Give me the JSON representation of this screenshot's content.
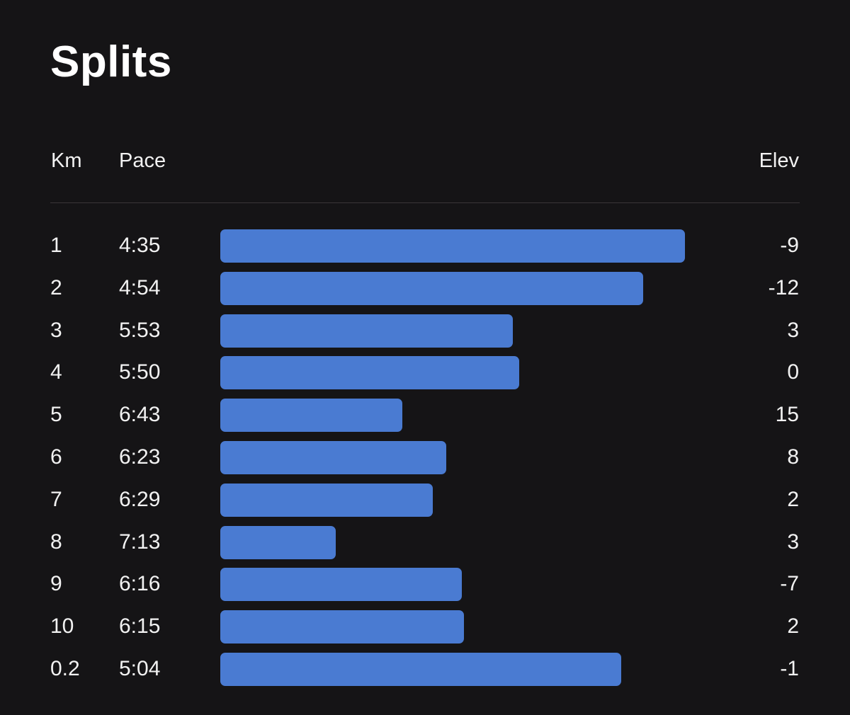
{
  "title": "Splits",
  "headers": {
    "km": "Km",
    "pace": "Pace",
    "elev": "Elev"
  },
  "colors": {
    "background": "#151416",
    "bar": "#4a7bd2",
    "text": "#ffffff",
    "divider": "#3a3538"
  },
  "splits": [
    {
      "km": "1",
      "pace": "4:35",
      "elev": "-9"
    },
    {
      "km": "2",
      "pace": "4:54",
      "elev": "-12"
    },
    {
      "km": "3",
      "pace": "5:53",
      "elev": "3"
    },
    {
      "km": "4",
      "pace": "5:50",
      "elev": "0"
    },
    {
      "km": "5",
      "pace": "6:43",
      "elev": "15"
    },
    {
      "km": "6",
      "pace": "6:23",
      "elev": "8"
    },
    {
      "km": "7",
      "pace": "6:29",
      "elev": "2"
    },
    {
      "km": "8",
      "pace": "7:13",
      "elev": "3"
    },
    {
      "km": "9",
      "pace": "6:16",
      "elev": "-7"
    },
    {
      "km": "10",
      "pace": "6:15",
      "elev": "2"
    },
    {
      "km": "0.2",
      "pace": "5:04",
      "elev": "-1"
    }
  ]
}
